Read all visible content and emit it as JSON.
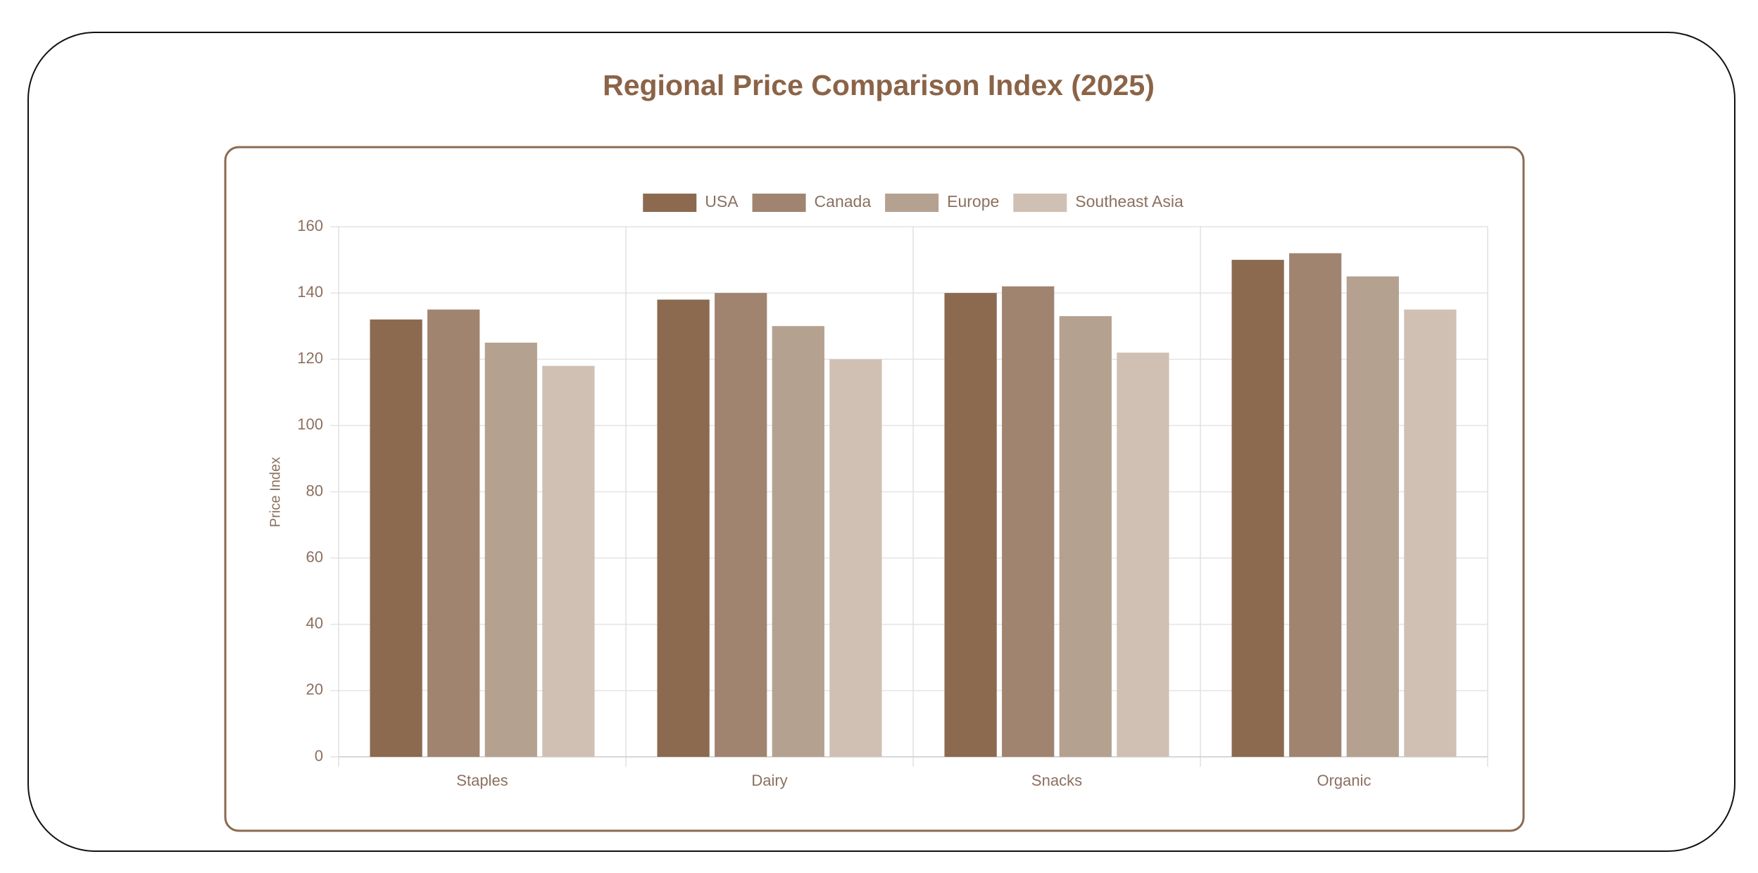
{
  "chart_data": {
    "type": "bar",
    "title": "Regional Price Comparison Index (2025)",
    "y_label": "Price Index",
    "categories": [
      "Staples",
      "Dairy",
      "Snacks",
      "Organic"
    ],
    "series": [
      {
        "name": "USA",
        "color": "#8b6a50",
        "values": [
          132,
          138,
          140,
          150
        ]
      },
      {
        "name": "Canada",
        "color": "#a08470",
        "values": [
          135,
          140,
          142,
          152
        ]
      },
      {
        "name": "Europe",
        "color": "#b5a190",
        "values": [
          125,
          130,
          133,
          145
        ]
      },
      {
        "name": "Southeast Asia",
        "color": "#d0c0b4",
        "values": [
          118,
          120,
          122,
          135
        ]
      }
    ],
    "ylim": [
      0,
      160
    ],
    "yticks": [
      0,
      20,
      40,
      60,
      80,
      100,
      120,
      140,
      160
    ],
    "grid": true,
    "legend": "top"
  }
}
